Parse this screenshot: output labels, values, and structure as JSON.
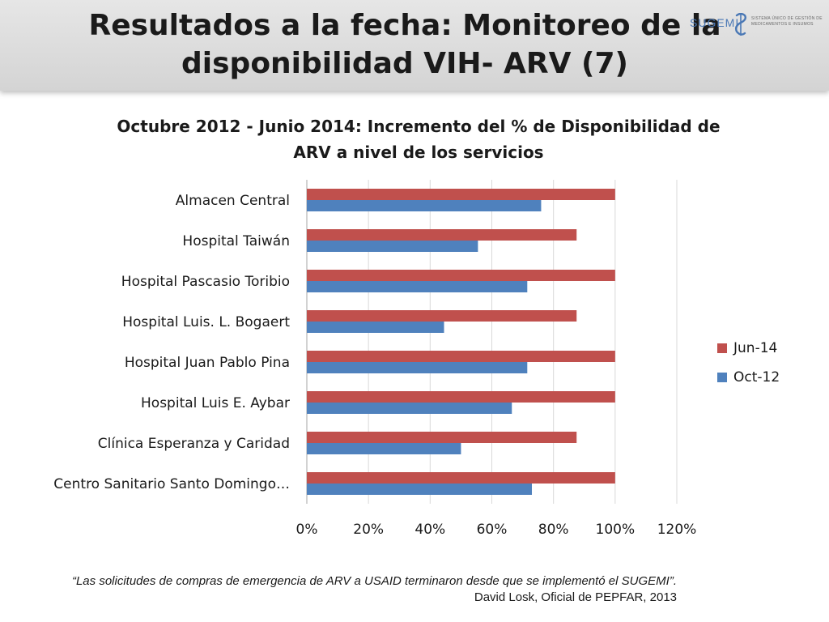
{
  "slide": {
    "title": "Resultados a la fecha: Monitoreo de la disponibilidad VIH- ARV (7)"
  },
  "logo": {
    "word": "SUGEMI",
    "subtitle": "SISTEMA ÚNICO DE GESTIÓN DE MEDICAMENTOS E INSUMOS"
  },
  "quote": {
    "text": "“Las solicitudes de compras de emergencia de ARV a USAID terminaron desde que se implementó el SUGEMI”.",
    "attribution": "David Losk, Oficial de PEPFAR, 2013"
  },
  "colors": {
    "jun14": "#c0504d",
    "oct12": "#4f81bd",
    "grid": "#d9d9d9",
    "axis": "#a6a6a6",
    "text": "#1a1a1a"
  },
  "chart_data": {
    "type": "bar",
    "orientation": "horizontal",
    "title": "Octubre 2012 - Junio 2014: Incremento del % de Disponibilidad de ARV a nivel de los servicios",
    "categories": [
      "Almacen Central",
      "Hospital Taiwán",
      "Hospital Pascasio Toribio",
      "Hospital Luis. L. Bogaert",
      "Hospital Juan Pablo Pina",
      "Hospital Luis E. Aybar",
      "Clínica Esperanza y Caridad",
      "Centro Sanitario Santo Domingo…"
    ],
    "series": [
      {
        "name": "Jun-14",
        "color": "#c0504d",
        "values": [
          100,
          87.5,
          100,
          87.5,
          100,
          100,
          87.5,
          100
        ]
      },
      {
        "name": "Oct-12",
        "color": "#4f81bd",
        "values": [
          76,
          55.5,
          71.5,
          44.5,
          71.5,
          66.5,
          50,
          73
        ]
      }
    ],
    "legend_order": [
      "Jun-14",
      "Oct-12"
    ],
    "xlim": [
      0,
      120
    ],
    "xticks": [
      0,
      20,
      40,
      60,
      80,
      100,
      120
    ],
    "tick_labels": [
      "0%",
      "20%",
      "40%",
      "60%",
      "80%",
      "100%",
      "120%"
    ],
    "xlabel": "",
    "ylabel": "",
    "grid": true,
    "legend_position": "right"
  }
}
